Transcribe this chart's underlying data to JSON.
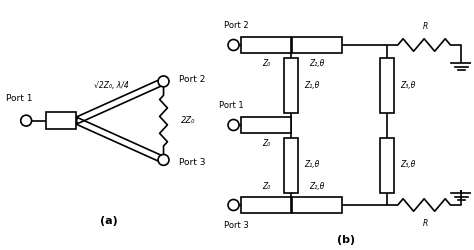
{
  "bg_color": "#ffffff",
  "line_color": "#000000",
  "lw": 1.2,
  "label_a": "(a)",
  "label_b": "(b)",
  "port1_label": "Port 1",
  "port2_label": "Port 2",
  "port3_label": "Port 3",
  "z0_label": "Z₀",
  "z1_label": "Z₁,θ",
  "z2_label": "Z₂,θ",
  "z3_label": "Z₃,θ",
  "r_label": "R",
  "two_z0_label": "2Z₀",
  "sqrt_label": "√2Z₀, λ/4"
}
